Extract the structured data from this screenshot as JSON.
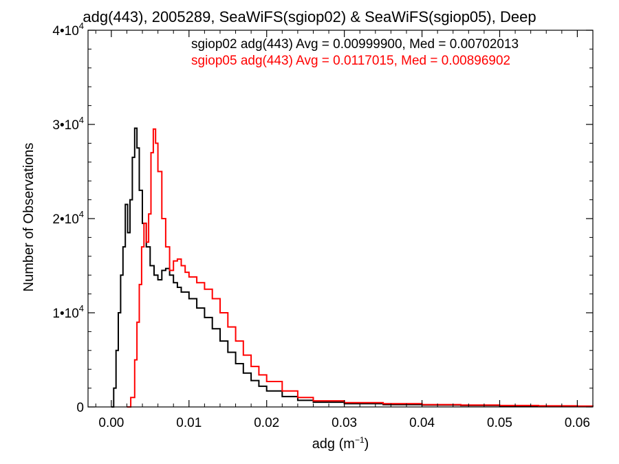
{
  "chart_data": {
    "type": "line",
    "title": "adg(443), 2005289, SeaWiFS(sgiop02) & SeaWiFS(sgiop05), Deep",
    "xlabel_base": "adg (m",
    "xlabel_exp": "−1",
    "xlabel_close": ")",
    "ylabel": "Number of Observations",
    "xlim": [
      -0.003,
      0.062
    ],
    "ylim": [
      0,
      40000
    ],
    "x_ticks": [
      {
        "value": 0.0,
        "label": "0.00"
      },
      {
        "value": 0.01,
        "label": "0.01"
      },
      {
        "value": 0.02,
        "label": "0.02"
      },
      {
        "value": 0.03,
        "label": "0.03"
      },
      {
        "value": 0.04,
        "label": "0.04"
      },
      {
        "value": 0.05,
        "label": "0.05"
      },
      {
        "value": 0.06,
        "label": "0.06"
      }
    ],
    "y_ticks": [
      {
        "value": 0,
        "base": "0",
        "exp": ""
      },
      {
        "value": 10000,
        "base": "1•10",
        "exp": "4"
      },
      {
        "value": 20000,
        "base": "2•10",
        "exp": "4"
      },
      {
        "value": 30000,
        "base": "3•10",
        "exp": "4"
      },
      {
        "value": 40000,
        "base": "4•10",
        "exp": "4"
      }
    ],
    "grid": false,
    "legend_position": "top-right",
    "series": [
      {
        "name": "sgiop02",
        "stats": "sgiop02 adg(443) Avg = 0.00999900, Med = 0.00702013",
        "color": "#000000",
        "points": [
          [
            0.0,
            0
          ],
          [
            0.0003,
            2000
          ],
          [
            0.0006,
            6000
          ],
          [
            0.0009,
            10000
          ],
          [
            0.0012,
            14000
          ],
          [
            0.0015,
            17000
          ],
          [
            0.0018,
            21500
          ],
          [
            0.0021,
            18500
          ],
          [
            0.0024,
            22000
          ],
          [
            0.0027,
            26500
          ],
          [
            0.003,
            29600
          ],
          [
            0.0033,
            27500
          ],
          [
            0.0036,
            23000
          ],
          [
            0.004,
            19500
          ],
          [
            0.0045,
            17000
          ],
          [
            0.005,
            15000
          ],
          [
            0.0055,
            14000
          ],
          [
            0.006,
            13500
          ],
          [
            0.0065,
            14500
          ],
          [
            0.007,
            14700
          ],
          [
            0.0075,
            14000
          ],
          [
            0.008,
            13200
          ],
          [
            0.0085,
            12700
          ],
          [
            0.009,
            12200
          ],
          [
            0.01,
            11500
          ],
          [
            0.011,
            10500
          ],
          [
            0.012,
            9500
          ],
          [
            0.013,
            8300
          ],
          [
            0.014,
            7000
          ],
          [
            0.015,
            5800
          ],
          [
            0.016,
            4600
          ],
          [
            0.017,
            3600
          ],
          [
            0.018,
            2800
          ],
          [
            0.019,
            2200
          ],
          [
            0.02,
            1700
          ],
          [
            0.022,
            1100
          ],
          [
            0.024,
            700
          ],
          [
            0.026,
            500
          ],
          [
            0.03,
            350
          ],
          [
            0.035,
            250
          ],
          [
            0.04,
            200
          ],
          [
            0.045,
            150
          ],
          [
            0.05,
            100
          ],
          [
            0.055,
            80
          ],
          [
            0.06,
            60
          ],
          [
            0.062,
            50
          ]
        ]
      },
      {
        "name": "sgiop05",
        "stats": "sgiop05 adg(443) Avg = 0.0117015, Med = 0.00896902",
        "color": "#ff0000",
        "points": [
          [
            0.002,
            0
          ],
          [
            0.0025,
            1000
          ],
          [
            0.003,
            5000
          ],
          [
            0.0033,
            9000
          ],
          [
            0.0036,
            13000
          ],
          [
            0.0039,
            17000
          ],
          [
            0.0042,
            19500
          ],
          [
            0.0045,
            17500
          ],
          [
            0.0048,
            20500
          ],
          [
            0.0051,
            27000
          ],
          [
            0.0054,
            29500
          ],
          [
            0.0057,
            28000
          ],
          [
            0.006,
            25000
          ],
          [
            0.0065,
            20000
          ],
          [
            0.007,
            17000
          ],
          [
            0.0075,
            14500
          ],
          [
            0.008,
            15500
          ],
          [
            0.0085,
            15700
          ],
          [
            0.009,
            15000
          ],
          [
            0.0095,
            14300
          ],
          [
            0.01,
            13800
          ],
          [
            0.011,
            13200
          ],
          [
            0.012,
            12500
          ],
          [
            0.013,
            11500
          ],
          [
            0.014,
            10000
          ],
          [
            0.015,
            8500
          ],
          [
            0.016,
            7000
          ],
          [
            0.017,
            5500
          ],
          [
            0.018,
            4300
          ],
          [
            0.019,
            3400
          ],
          [
            0.02,
            2700
          ],
          [
            0.022,
            1700
          ],
          [
            0.024,
            1000
          ],
          [
            0.026,
            650
          ],
          [
            0.03,
            450
          ],
          [
            0.035,
            350
          ],
          [
            0.04,
            250
          ],
          [
            0.045,
            200
          ],
          [
            0.05,
            150
          ],
          [
            0.055,
            120
          ],
          [
            0.06,
            90
          ],
          [
            0.062,
            80
          ]
        ]
      }
    ]
  }
}
